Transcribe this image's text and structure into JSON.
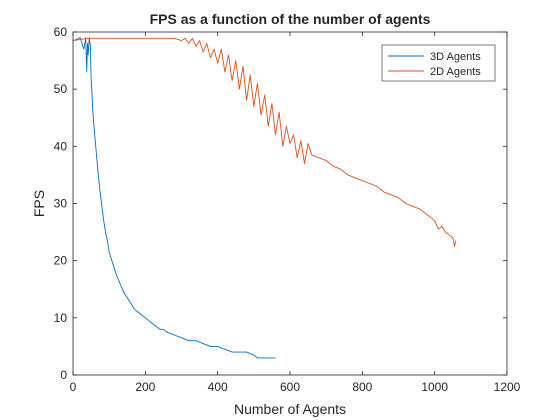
{
  "chart_data": {
    "type": "line",
    "title": "FPS as a function of the number of agents",
    "xlabel": "Number of Agents",
    "ylabel": "FPS",
    "xlim": [
      0,
      1200
    ],
    "ylim": [
      0,
      60
    ],
    "xticks": [
      "0",
      "200",
      "400",
      "600",
      "800",
      "1000",
      "1200"
    ],
    "yticks": [
      "0",
      "10",
      "20",
      "30",
      "40",
      "50",
      "60"
    ],
    "grid": false,
    "legend": "top-right",
    "series": [
      {
        "name": "3D Agents",
        "color": "#0072BD",
        "x": [
          1,
          10,
          20,
          30,
          35,
          38,
          40,
          42,
          45,
          48,
          50,
          55,
          60,
          65,
          70,
          75,
          80,
          85,
          90,
          95,
          100,
          110,
          120,
          130,
          140,
          150,
          160,
          170,
          180,
          190,
          200,
          210,
          220,
          230,
          240,
          250,
          260,
          280,
          300,
          320,
          340,
          360,
          380,
          400,
          420,
          440,
          460,
          480,
          500,
          510,
          520,
          540,
          560
        ],
        "y": [
          58.5,
          58.7,
          59,
          57,
          59,
          53,
          58,
          56,
          59,
          57.5,
          52,
          46,
          42,
          38.5,
          35,
          32,
          29.5,
          27,
          25,
          23.5,
          21.5,
          19.5,
          17.5,
          16,
          14.5,
          13.5,
          12.5,
          11.5,
          11,
          10.5,
          10,
          9.5,
          9,
          8.5,
          8,
          8,
          7.5,
          7,
          6.5,
          6,
          6,
          5.5,
          5,
          5,
          4.5,
          4,
          4,
          4,
          3.5,
          3,
          3,
          3,
          3
        ]
      },
      {
        "name": "2D Agents",
        "color": "#D95319",
        "x": [
          1,
          20,
          40,
          60,
          80,
          100,
          120,
          140,
          160,
          180,
          200,
          220,
          240,
          260,
          280,
          300,
          310,
          320,
          330,
          340,
          350,
          360,
          370,
          380,
          390,
          400,
          410,
          420,
          430,
          440,
          450,
          460,
          470,
          480,
          490,
          500,
          510,
          520,
          530,
          540,
          550,
          560,
          570,
          580,
          590,
          600,
          610,
          620,
          630,
          640,
          650,
          660,
          680,
          700,
          720,
          740,
          760,
          780,
          800,
          820,
          840,
          860,
          880,
          900,
          920,
          940,
          960,
          980,
          1000,
          1010,
          1020,
          1030,
          1040,
          1050,
          1055,
          1058
        ],
        "y": [
          58.5,
          58.7,
          58.9,
          58.9,
          58.9,
          58.9,
          58.9,
          58.9,
          58.9,
          58.9,
          58.9,
          58.9,
          58.9,
          58.9,
          58.9,
          58.5,
          58.9,
          58,
          58.9,
          57.5,
          58.5,
          56.5,
          58,
          55.5,
          57,
          54.5,
          57,
          53,
          56,
          51.5,
          55,
          50,
          54,
          48,
          52.5,
          47,
          51,
          45.5,
          49,
          43.5,
          47.5,
          42,
          46,
          40,
          43.5,
          40.5,
          42,
          38,
          41,
          37,
          40.5,
          38.5,
          38,
          37.5,
          36.5,
          36,
          35,
          34.5,
          34,
          33.5,
          33,
          32,
          31.5,
          31,
          30,
          29.5,
          29,
          28,
          27,
          25.5,
          26,
          25,
          24.5,
          24,
          22.5,
          23.5
        ]
      }
    ]
  }
}
